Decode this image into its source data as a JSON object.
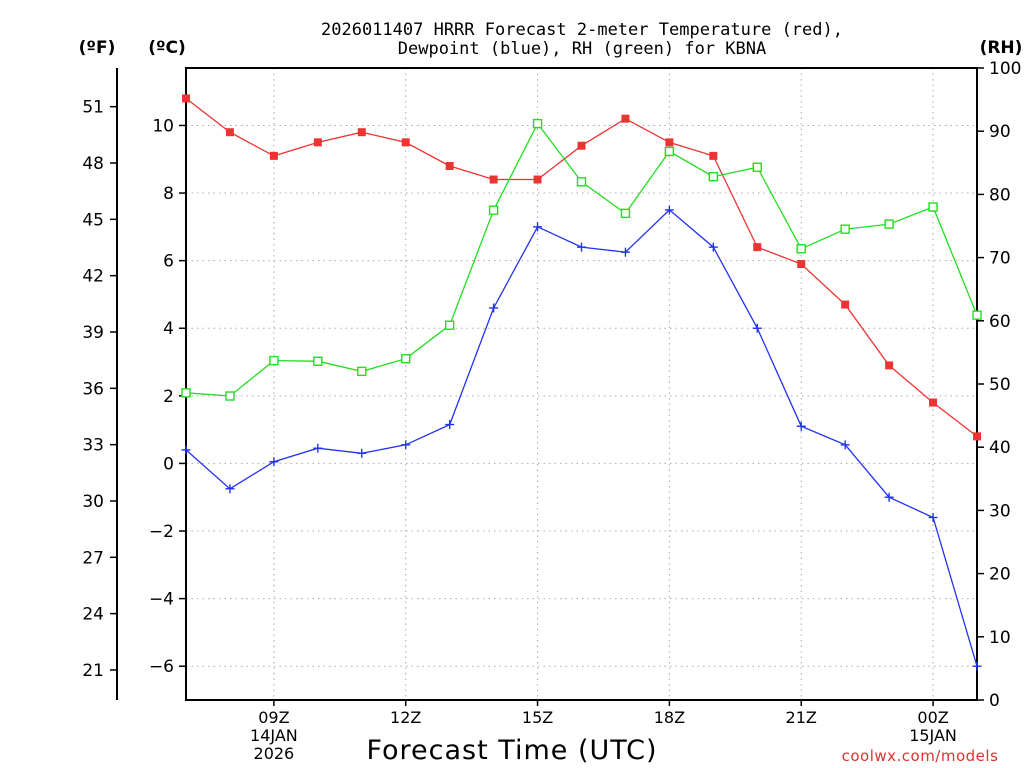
{
  "chart_data": {
    "type": "line",
    "title_line1": "2026011407 HRRR Forecast 2-meter Temperature (red),",
    "title_line2": "Dewpoint (blue), RH (green) for KBNA",
    "xlabel": "Forecast Time (UTC)",
    "unit_labels": {
      "fahrenheit": "(ºF)",
      "celsius": "(ºC)",
      "rh": "(RH)"
    },
    "credit": "coolwx.com/models",
    "x_hours": [
      7,
      8,
      9,
      10,
      11,
      12,
      13,
      14,
      15,
      16,
      17,
      18,
      19,
      20,
      21,
      22,
      23,
      24,
      25
    ],
    "xlim": [
      7,
      25
    ],
    "x_ticks": [
      {
        "hour": 9,
        "label": "09Z",
        "sub1": "14JAN",
        "sub2": "2026"
      },
      {
        "hour": 12,
        "label": "12Z",
        "sub1": "",
        "sub2": ""
      },
      {
        "hour": 15,
        "label": "15Z",
        "sub1": "",
        "sub2": ""
      },
      {
        "hour": 18,
        "label": "18Z",
        "sub1": "",
        "sub2": ""
      },
      {
        "hour": 21,
        "label": "21Z",
        "sub1": "",
        "sub2": ""
      },
      {
        "hour": 24,
        "label": "00Z",
        "sub1": "15JAN",
        "sub2": ""
      }
    ],
    "ylim_c": [
      -7,
      11.7
    ],
    "y_ticks_c": [
      -6,
      -4,
      -2,
      0,
      2,
      4,
      6,
      8,
      10
    ],
    "y_ticks_f": [
      21,
      24,
      27,
      30,
      33,
      36,
      39,
      42,
      45,
      48,
      51
    ],
    "ylim_rh": [
      0,
      100
    ],
    "y_ticks_rh": [
      0,
      10,
      20,
      30,
      40,
      50,
      60,
      70,
      80,
      90,
      100
    ],
    "series": [
      {
        "name": "Temperature",
        "axis": "c",
        "color": "#ee3333",
        "marker": "filled-square",
        "values": [
          10.8,
          9.8,
          9.1,
          9.5,
          9.8,
          9.5,
          8.8,
          8.4,
          8.4,
          9.4,
          10.2,
          9.5,
          9.1,
          6.4,
          5.9,
          4.7,
          2.9,
          1.8,
          0.8
        ]
      },
      {
        "name": "Dewpoint",
        "axis": "c",
        "color": "#2233ee",
        "marker": "plus",
        "values": [
          0.4,
          -0.75,
          0.05,
          0.45,
          0.3,
          0.55,
          1.15,
          4.6,
          7.0,
          6.4,
          6.25,
          7.5,
          6.4,
          4.0,
          1.1,
          0.55,
          -1.0,
          -1.6,
          -6.0
        ]
      },
      {
        "name": "RH",
        "axis": "rh",
        "color": "#22dd22",
        "marker": "open-square",
        "values": [
          48.6,
          48.1,
          53.7,
          53.6,
          52.0,
          54.0,
          59.3,
          77.5,
          91.2,
          82.0,
          77.0,
          86.8,
          82.8,
          84.3,
          71.4,
          74.5,
          75.3,
          78.0,
          60.9
        ]
      }
    ]
  }
}
